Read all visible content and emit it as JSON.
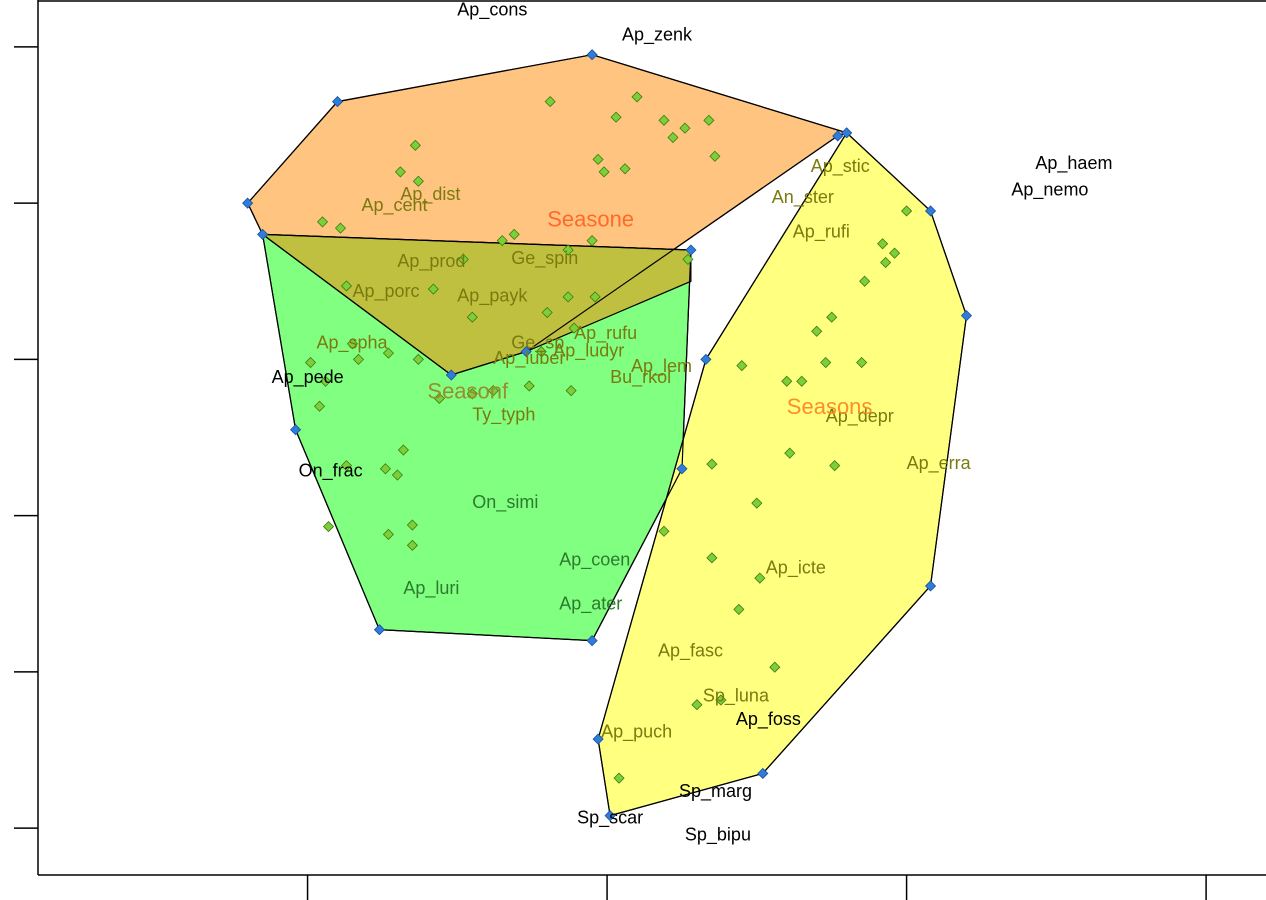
{
  "chart_data": {
    "type": "scatter",
    "title": "",
    "xlabel": "",
    "ylabel": "",
    "xlim": [
      0.1,
      4.2
    ],
    "ylim": [
      -0.3,
      5.3
    ],
    "grid": false,
    "x_ticks": [
      1,
      2,
      3,
      4
    ],
    "y_ticks": [
      0,
      1,
      2,
      3,
      4,
      5
    ],
    "colors": {
      "hull_e": "#FFC580",
      "hull_f": "#80FF80",
      "hull_s": "#FFFF80",
      "hull_ef_overlap": "#C0C040",
      "point_fill": "#7DCF3A",
      "vertex_point": "#2E7DD8",
      "centroid_e": "#FF6A2A",
      "centroid_s": "#FF8C2A",
      "centroid_f": "#9A8C30",
      "label_black": "#000000",
      "label_olive": "#7A7A10",
      "label_green": "#2E7A2E"
    },
    "groups": [
      {
        "id": "e",
        "label": "Seasone",
        "centroid": [
          1.8,
          3.85
        ],
        "hull": [
          [
            0.8,
            4.0
          ],
          [
            1.1,
            4.65
          ],
          [
            1.95,
            4.95
          ],
          [
            2.8,
            4.45
          ],
          [
            2.77,
            4.43
          ],
          [
            1.73,
            3.05
          ],
          [
            1.48,
            2.9
          ],
          [
            0.85,
            3.8
          ]
        ]
      },
      {
        "id": "f",
        "label": "Seasonf",
        "centroid": [
          1.4,
          2.75
        ],
        "hull": [
          [
            0.85,
            3.8
          ],
          [
            2.28,
            3.7
          ],
          [
            2.25,
            2.3
          ],
          [
            1.95,
            1.2
          ],
          [
            1.24,
            1.27
          ],
          [
            0.96,
            2.55
          ]
        ]
      },
      {
        "id": "s",
        "label": "Seasons",
        "centroid": [
          2.6,
          2.65
        ],
        "hull": [
          [
            2.8,
            4.45
          ],
          [
            3.08,
            3.95
          ],
          [
            3.2,
            3.28
          ],
          [
            3.08,
            1.55
          ],
          [
            2.52,
            0.35
          ],
          [
            2.01,
            0.08
          ],
          [
            1.97,
            0.57
          ],
          [
            2.33,
            3.0
          ]
        ]
      }
    ],
    "points": [
      [
        1.1,
        4.65
      ],
      [
        1.95,
        4.95
      ],
      [
        2.8,
        4.45
      ],
      [
        2.77,
        4.43
      ],
      [
        0.8,
        4.0
      ],
      [
        0.85,
        3.8
      ],
      [
        3.0,
        3.95
      ],
      [
        3.08,
        3.95
      ],
      [
        3.2,
        3.28
      ],
      [
        2.33,
        3.0
      ],
      [
        1.73,
        3.05
      ],
      [
        1.48,
        2.9
      ],
      [
        0.96,
        2.55
      ],
      [
        2.28,
        3.7
      ],
      [
        2.25,
        2.3
      ],
      [
        1.95,
        1.2
      ],
      [
        1.24,
        1.27
      ],
      [
        3.08,
        1.55
      ],
      [
        2.52,
        0.35
      ],
      [
        2.01,
        0.08
      ],
      [
        1.97,
        0.57
      ],
      [
        1.81,
        4.65
      ],
      [
        2.1,
        4.68
      ],
      [
        2.03,
        4.55
      ],
      [
        2.19,
        4.53
      ],
      [
        2.26,
        4.48
      ],
      [
        2.34,
        4.53
      ],
      [
        2.22,
        4.42
      ],
      [
        1.36,
        4.37
      ],
      [
        1.97,
        4.28
      ],
      [
        1.99,
        4.2
      ],
      [
        2.06,
        4.22
      ],
      [
        2.36,
        4.3
      ],
      [
        1.31,
        4.2
      ],
      [
        1.37,
        4.14
      ],
      [
        1.05,
        3.88
      ],
      [
        1.11,
        3.84
      ],
      [
        1.69,
        3.8
      ],
      [
        1.65,
        3.76
      ],
      [
        1.87,
        3.7
      ],
      [
        1.95,
        3.76
      ],
      [
        2.27,
        3.64
      ],
      [
        1.52,
        3.64
      ],
      [
        1.42,
        3.45
      ],
      [
        1.13,
        3.47
      ],
      [
        1.55,
        3.27
      ],
      [
        1.87,
        3.4
      ],
      [
        1.96,
        3.4
      ],
      [
        1.8,
        3.3
      ],
      [
        1.89,
        3.2
      ],
      [
        1.78,
        3.05
      ],
      [
        1.15,
        3.1
      ],
      [
        1.27,
        3.04
      ],
      [
        2.92,
        3.74
      ],
      [
        2.96,
        3.68
      ],
      [
        2.93,
        3.62
      ],
      [
        2.86,
        3.5
      ],
      [
        2.75,
        3.27
      ],
      [
        2.7,
        3.18
      ],
      [
        2.45,
        2.96
      ],
      [
        2.73,
        2.98
      ],
      [
        2.85,
        2.98
      ],
      [
        2.6,
        2.86
      ],
      [
        2.65,
        2.86
      ],
      [
        2.61,
        2.4
      ],
      [
        2.76,
        2.32
      ],
      [
        2.35,
        2.33
      ],
      [
        2.5,
        2.08
      ],
      [
        2.35,
        1.73
      ],
      [
        2.19,
        1.9
      ],
      [
        2.51,
        1.6
      ],
      [
        2.44,
        1.4
      ],
      [
        2.56,
        1.03
      ],
      [
        2.3,
        0.79
      ],
      [
        2.38,
        0.82
      ],
      [
        2.04,
        0.32
      ],
      [
        1.17,
        3.0
      ],
      [
        1.37,
        3.0
      ],
      [
        1.01,
        2.98
      ],
      [
        1.06,
        2.86
      ],
      [
        1.04,
        2.7
      ],
      [
        1.44,
        2.75
      ],
      [
        1.55,
        2.78
      ],
      [
        1.62,
        2.8
      ],
      [
        1.74,
        2.83
      ],
      [
        1.88,
        2.8
      ],
      [
        1.32,
        2.42
      ],
      [
        1.13,
        2.32
      ],
      [
        1.26,
        2.3
      ],
      [
        1.3,
        2.26
      ],
      [
        1.07,
        1.93
      ],
      [
        1.27,
        1.88
      ],
      [
        1.35,
        1.94
      ],
      [
        1.35,
        1.81
      ]
    ],
    "labels": [
      {
        "text": "Ap_cons",
        "x": 1.5,
        "y": 5.2,
        "color": "label_black"
      },
      {
        "text": "Ap_zenk",
        "x": 2.05,
        "y": 5.04,
        "color": "label_black"
      },
      {
        "text": "Ap_haem",
        "x": 3.43,
        "y": 4.22,
        "color": "label_black"
      },
      {
        "text": "Ap_nemo",
        "x": 3.35,
        "y": 4.05,
        "color": "label_black"
      },
      {
        "text": "Ap_stic",
        "x": 2.68,
        "y": 4.2,
        "color": "label_olive"
      },
      {
        "text": "An_ster",
        "x": 2.55,
        "y": 4.0,
        "color": "label_olive"
      },
      {
        "text": "Ap_rufi",
        "x": 2.62,
        "y": 3.78,
        "color": "label_olive"
      },
      {
        "text": "Ap_dist",
        "x": 1.31,
        "y": 4.02,
        "color": "label_olive"
      },
      {
        "text": "Ap_cent",
        "x": 1.18,
        "y": 3.95,
        "color": "label_olive"
      },
      {
        "text": "Ap_prod",
        "x": 1.3,
        "y": 3.59,
        "color": "label_olive"
      },
      {
        "text": "Ge_spin",
        "x": 1.68,
        "y": 3.61,
        "color": "label_olive"
      },
      {
        "text": "Ap_porc",
        "x": 1.15,
        "y": 3.4,
        "color": "label_olive"
      },
      {
        "text": "Ap_payk",
        "x": 1.5,
        "y": 3.37,
        "color": "label_olive"
      },
      {
        "text": "Ap_spha",
        "x": 1.03,
        "y": 3.07,
        "color": "label_olive"
      },
      {
        "text": "Ap_rufu",
        "x": 1.89,
        "y": 3.13,
        "color": "label_olive"
      },
      {
        "text": "Ge_sp",
        "x": 1.68,
        "y": 3.07,
        "color": "label_olive"
      },
      {
        "text": "Ap_ludyr",
        "x": 1.82,
        "y": 3.02,
        "color": "label_olive"
      },
      {
        "text": "Ap_luber",
        "x": 1.62,
        "y": 2.97,
        "color": "label_olive"
      },
      {
        "text": "Ap_lem",
        "x": 2.08,
        "y": 2.92,
        "color": "label_olive"
      },
      {
        "text": "Bu_rkol",
        "x": 2.01,
        "y": 2.85,
        "color": "label_olive"
      },
      {
        "text": "Ap_pede",
        "x": 0.88,
        "y": 2.85,
        "color": "label_black"
      },
      {
        "text": "Ty_typh",
        "x": 1.55,
        "y": 2.61,
        "color": "label_olive"
      },
      {
        "text": "Ap_depr",
        "x": 2.73,
        "y": 2.6,
        "color": "label_olive"
      },
      {
        "text": "On_frac",
        "x": 0.97,
        "y": 2.25,
        "color": "label_black"
      },
      {
        "text": "Ap_erra",
        "x": 3.0,
        "y": 2.3,
        "color": "label_olive"
      },
      {
        "text": "On_simi",
        "x": 1.55,
        "y": 2.05,
        "color": "label_green"
      },
      {
        "text": "Ap_coen",
        "x": 1.84,
        "y": 1.68,
        "color": "label_green"
      },
      {
        "text": "Ap_icte",
        "x": 2.53,
        "y": 1.63,
        "color": "label_olive"
      },
      {
        "text": "Ap_luri",
        "x": 1.32,
        "y": 1.5,
        "color": "label_green"
      },
      {
        "text": "Ap_ater",
        "x": 1.84,
        "y": 1.4,
        "color": "label_green"
      },
      {
        "text": "Ap_fasc",
        "x": 2.17,
        "y": 1.1,
        "color": "label_olive"
      },
      {
        "text": "Sp_luna",
        "x": 2.32,
        "y": 0.81,
        "color": "label_olive"
      },
      {
        "text": "Ap_foss",
        "x": 2.43,
        "y": 0.66,
        "color": "label_black"
      },
      {
        "text": "Ap_puch",
        "x": 1.98,
        "y": 0.58,
        "color": "label_olive"
      },
      {
        "text": "Sp_marg",
        "x": 2.24,
        "y": 0.2,
        "color": "label_black"
      },
      {
        "text": "Sp_scar",
        "x": 1.9,
        "y": 0.03,
        "color": "label_black"
      },
      {
        "text": "Sp_bipu",
        "x": 2.26,
        "y": -0.08,
        "color": "label_black"
      }
    ]
  }
}
